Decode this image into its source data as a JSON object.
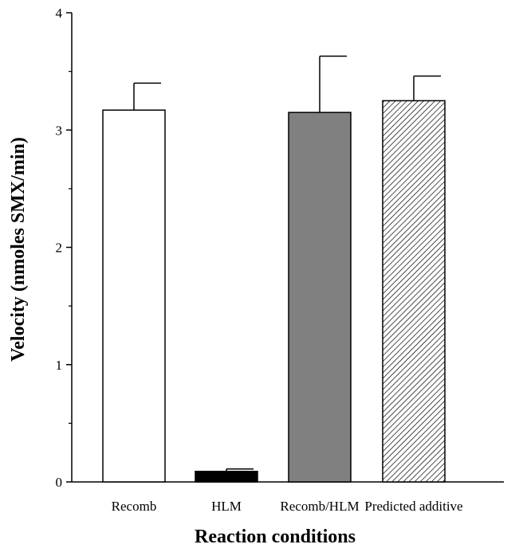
{
  "chart_data": {
    "type": "bar",
    "categories": [
      "Recomb",
      "HLM",
      "Recomb/HLM",
      "Predicted additive"
    ],
    "values": [
      3.17,
      0.09,
      3.15,
      3.25
    ],
    "errors": [
      0.23,
      0.02,
      0.48,
      0.21
    ],
    "xlabel": "Reaction conditions",
    "ylabel": "Velocity (nmoles SMX/min)",
    "ylim": [
      0,
      4
    ],
    "yticks": [
      "0",
      "1",
      "2",
      "3",
      "4"
    ],
    "bar_styles": [
      "white",
      "black",
      "gray",
      "hatched"
    ],
    "colors": {
      "white": "#ffffff",
      "black": "#000000",
      "gray": "#808080",
      "hatched": "#ffffff"
    },
    "grid": false,
    "legend": "none"
  }
}
